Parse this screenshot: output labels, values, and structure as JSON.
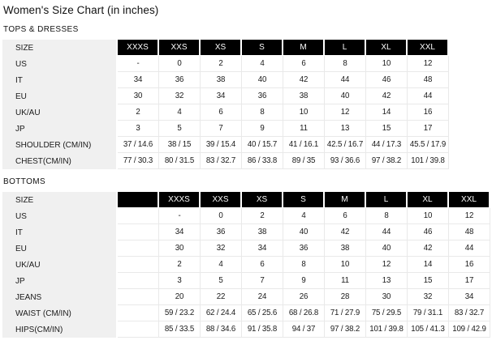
{
  "page": {
    "title": "Women's Size Chart (in inches)"
  },
  "colors": {
    "header_bg": "#000000",
    "header_text": "#ffffff",
    "label_col_bg": "#f0f0f0",
    "row_border": "#e9e9e9",
    "text": "#1a1a1a",
    "background": "#ffffff"
  },
  "sections": [
    {
      "id": "tops-and-dresses",
      "label": "TOPS & DRESSES",
      "table": {
        "corner_label": "SIZE",
        "header": [
          "XXXS",
          "XXS",
          "XS",
          "S",
          "M",
          "L",
          "XL",
          "XXL"
        ],
        "rows": [
          {
            "label": "US",
            "values": [
              "-",
              "0",
              "2",
              "4",
              "6",
              "8",
              "10",
              "12"
            ]
          },
          {
            "label": "IT",
            "values": [
              "34",
              "36",
              "38",
              "40",
              "42",
              "44",
              "46",
              "48"
            ]
          },
          {
            "label": "EU",
            "values": [
              "30",
              "32",
              "34",
              "36",
              "38",
              "40",
              "42",
              "44"
            ]
          },
          {
            "label": "UK/AU",
            "values": [
              "2",
              "4",
              "6",
              "8",
              "10",
              "12",
              "14",
              "16"
            ]
          },
          {
            "label": "JP",
            "values": [
              "3",
              "5",
              "7",
              "9",
              "11",
              "13",
              "15",
              "17"
            ]
          },
          {
            "label": "SHOULDER (CM/IN)",
            "values": [
              "37 / 14.6",
              "38 / 15",
              "39 / 15.4",
              "40 / 15.7",
              "41 / 16.1",
              "42.5 / 16.7",
              "44 / 17.3",
              "45.5 / 17.9"
            ]
          },
          {
            "label": "CHEST(CM/IN)",
            "values": [
              "77 / 30.3",
              "80 / 31.5",
              "83 / 32.7",
              "86 / 33.8",
              "89 / 35",
              "93 / 36.6",
              "97 / 38.2",
              "101 / 39.8"
            ]
          }
        ]
      }
    },
    {
      "id": "bottoms",
      "label": "BOTTOMS",
      "table": {
        "corner_label": "SIZE",
        "header": [
          "",
          "XXXS",
          "XXS",
          "XS",
          "S",
          "M",
          "L",
          "XL",
          "XXL"
        ],
        "rows": [
          {
            "label": "US",
            "values": [
              "",
              "-",
              "0",
              "2",
              "4",
              "6",
              "8",
              "10",
              "12"
            ]
          },
          {
            "label": "IT",
            "values": [
              "",
              "34",
              "36",
              "38",
              "40",
              "42",
              "44",
              "46",
              "48"
            ]
          },
          {
            "label": "EU",
            "values": [
              "",
              "30",
              "32",
              "34",
              "36",
              "38",
              "40",
              "42",
              "44"
            ]
          },
          {
            "label": "UK/AU",
            "values": [
              "",
              "2",
              "4",
              "6",
              "8",
              "10",
              "12",
              "14",
              "16"
            ]
          },
          {
            "label": "JP",
            "values": [
              "",
              "3",
              "5",
              "7",
              "9",
              "11",
              "13",
              "15",
              "17"
            ]
          },
          {
            "label": "JEANS",
            "values": [
              "",
              "20",
              "22",
              "24",
              "26",
              "28",
              "30",
              "32",
              "34"
            ]
          },
          {
            "label": "WAIST (CM/IN)",
            "values": [
              "",
              "59 / 23.2",
              "62 / 24.4",
              "65 / 25.6",
              "68 / 26.8",
              "71 / 27.9",
              "75 / 29.5",
              "79 / 31.1",
              "83 / 32.7"
            ]
          },
          {
            "label": "HIPS(CM/IN)",
            "values": [
              "",
              "85 / 33.5",
              "88 / 34.6",
              "91 / 35.8",
              "94 / 37",
              "97 / 38.2",
              "101 / 39.8",
              "105 / 41.3",
              "109 / 42.9"
            ]
          }
        ]
      }
    }
  ]
}
